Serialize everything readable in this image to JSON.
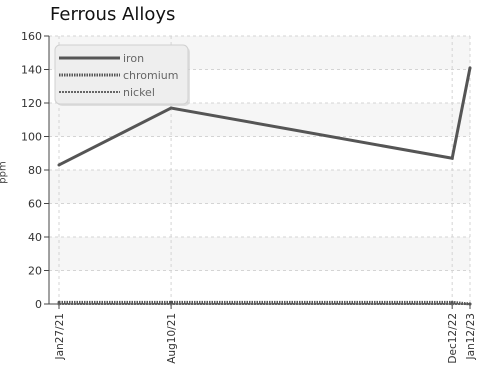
{
  "chart_data": {
    "type": "line",
    "title": "Ferrous Alloys",
    "ylabel": "ppm",
    "xlabel": "",
    "categories": [
      "Jan27/21",
      "Aug10/21",
      "Dec12/22",
      "Jan12/23"
    ],
    "dates": [
      "2021-01-27",
      "2021-08-10",
      "2022-12-12",
      "2023-01-12"
    ],
    "ylim": [
      0,
      160
    ],
    "yticks": [
      0,
      20,
      40,
      60,
      80,
      100,
      120,
      140,
      160
    ],
    "grid": true,
    "legend_position": "top-left",
    "series": [
      {
        "name": "iron",
        "values": [
          83,
          117,
          87,
          141
        ],
        "color": "#555555",
        "style": "solid"
      },
      {
        "name": "chromium",
        "values": [
          1,
          1,
          1,
          0
        ],
        "color": "#555555",
        "style": "dotted"
      },
      {
        "name": "nickel",
        "values": [
          0,
          0,
          0,
          0
        ],
        "color": "#666666",
        "style": "dash"
      }
    ]
  }
}
